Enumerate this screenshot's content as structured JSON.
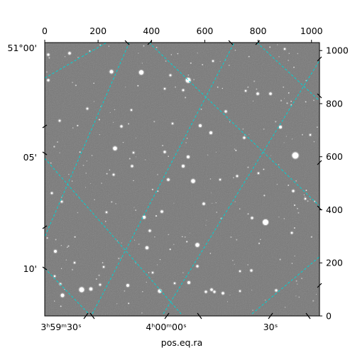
{
  "chart_data": {
    "type": "image",
    "title": "",
    "xlabel": "pos.eq.ra",
    "ylabel": "",
    "pixel_axes": {
      "x_range": [
        0,
        1030
      ],
      "y_range": [
        0,
        1030
      ],
      "top_ticks": [
        0,
        200,
        400,
        600,
        800,
        1000
      ],
      "right_ticks": [
        0,
        200,
        400,
        600,
        800,
        1000
      ]
    },
    "world_axes": {
      "ra_tick_labels": [
        "3ʰ59ᵐ30ˢ",
        "4ʰ00ᵐ00ˢ",
        "30ˢ"
      ],
      "dec_tick_labels": [
        "51°00'",
        "05'",
        "10'"
      ]
    },
    "grid": true,
    "grid_color": "#00d2d2",
    "background_color": "#777777",
    "colors": {
      "grid": "#00d2d2",
      "sky": "#777777",
      "stars": "#ffffff"
    }
  }
}
